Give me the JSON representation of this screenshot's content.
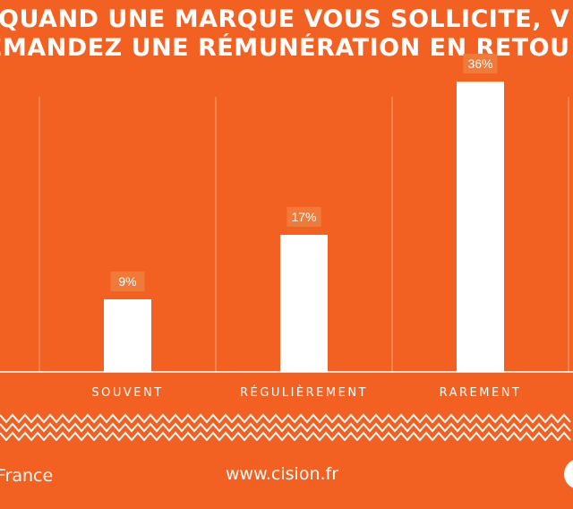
{
  "title": {
    "line1": "QUAND UNE MARQUE VOUS SOLLICITE, V",
    "line2": "EMANDEZ UNE RÉMUNÉRATION EN RETOU"
  },
  "colors": {
    "background": "#f26122",
    "bar": "#ffffff",
    "label_box": "#f07a3a",
    "grid": "#f8a47a"
  },
  "chart_data": {
    "type": "bar",
    "categories": [
      "SOUVENT",
      "RÉGULIÈREMENT",
      "RAREMENT"
    ],
    "values": [
      9,
      17,
      36
    ],
    "value_labels": [
      "9%",
      "17%",
      "36%"
    ],
    "ylim": [
      0,
      40
    ]
  },
  "footer": {
    "left_text": "France",
    "center_text": "www.cision.fr"
  }
}
